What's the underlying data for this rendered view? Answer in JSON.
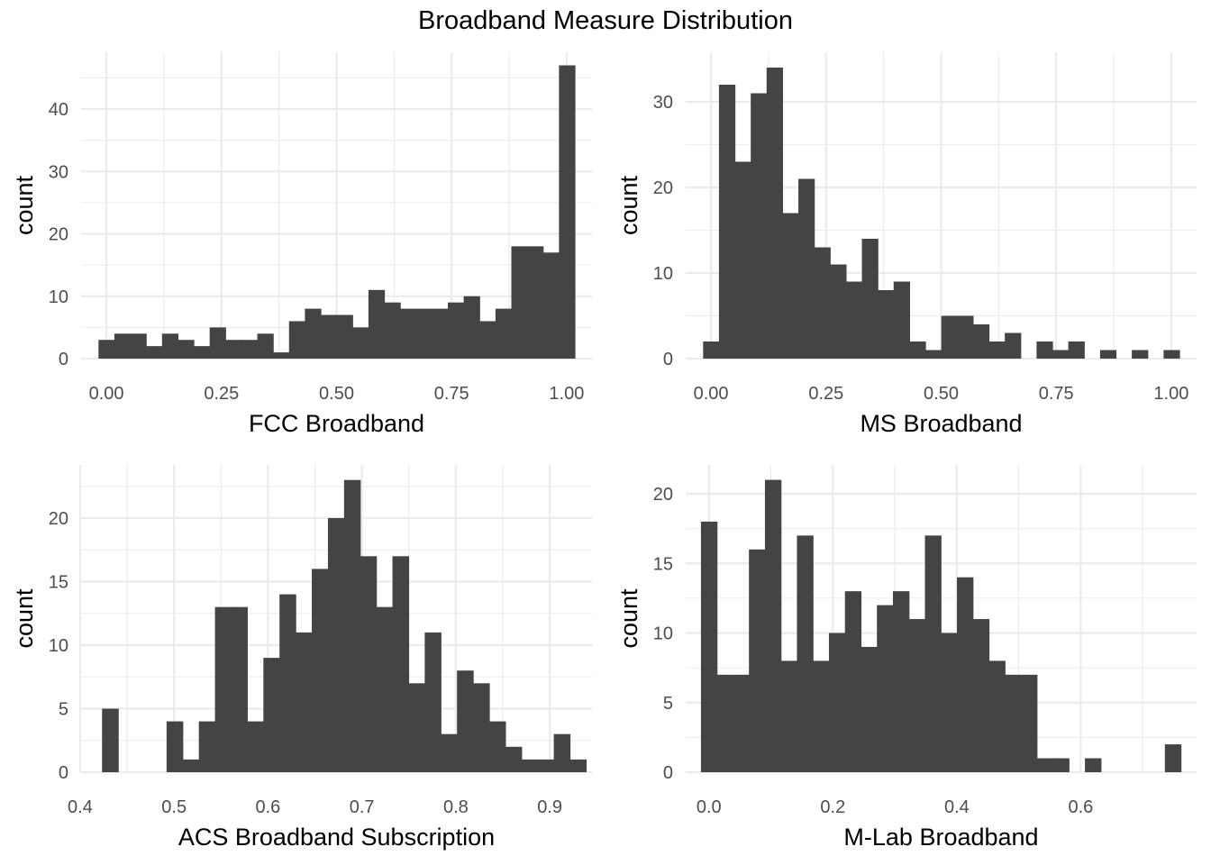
{
  "figure": {
    "title": "Broadband Measure Distribution"
  },
  "chart_data": [
    {
      "type": "bar",
      "xlabel": "FCC Broadband",
      "ylabel": "count",
      "xlim": [
        -0.055,
        1.055
      ],
      "ylim": [
        0,
        47
      ],
      "grid": true,
      "x_major_ticks": [
        0.0,
        0.25,
        0.5,
        0.75,
        1.0
      ],
      "x_tick_labels": [
        "0.00",
        "0.25",
        "0.50",
        "0.75",
        "1.00"
      ],
      "x_minor_ticks": [
        0.125,
        0.375,
        0.625,
        0.875
      ],
      "y_major_ticks": [
        0,
        10,
        20,
        30,
        40
      ],
      "y_tick_labels": [
        "0",
        "10",
        "20",
        "30",
        "40"
      ],
      "y_minor_ticks": [
        5,
        15,
        25,
        35,
        45
      ],
      "bin_start": -0.0172,
      "bin_width": 0.0345,
      "values": [
        3,
        4,
        4,
        2,
        4,
        3,
        2,
        5,
        3,
        3,
        4,
        1,
        6,
        8,
        7,
        7,
        5,
        11,
        9,
        8,
        8,
        8,
        9,
        10,
        6,
        8,
        18,
        18,
        17,
        47
      ]
    },
    {
      "type": "bar",
      "xlabel": "MS Broadband",
      "ylabel": "count",
      "xlim": [
        -0.055,
        1.055
      ],
      "ylim": [
        0,
        34
      ],
      "grid": true,
      "x_major_ticks": [
        0.0,
        0.25,
        0.5,
        0.75,
        1.0
      ],
      "x_tick_labels": [
        "0.00",
        "0.25",
        "0.50",
        "0.75",
        "1.00"
      ],
      "x_minor_ticks": [
        0.125,
        0.375,
        0.625,
        0.875
      ],
      "y_major_ticks": [
        0,
        10,
        20,
        30
      ],
      "y_tick_labels": [
        "0",
        "10",
        "20",
        "30"
      ],
      "y_minor_ticks": [
        5,
        15,
        25
      ],
      "bin_start": -0.0172,
      "bin_width": 0.0345,
      "values": [
        2,
        32,
        23,
        31,
        34,
        17,
        21,
        13,
        11,
        9,
        14,
        8,
        9,
        2,
        1,
        5,
        5,
        4,
        2,
        3,
        0,
        2,
        1,
        2,
        0,
        1,
        0,
        1,
        0,
        1
      ]
    },
    {
      "type": "bar",
      "xlabel": "ACS Broadband Subscription",
      "ylabel": "count",
      "xlim": [
        0.401,
        0.945
      ],
      "ylim": [
        0,
        23
      ],
      "grid": true,
      "x_major_ticks": [
        0.4,
        0.5,
        0.6,
        0.7,
        0.8,
        0.9
      ],
      "x_tick_labels": [
        "0.4",
        "0.5",
        "0.6",
        "0.7",
        "0.8",
        "0.9"
      ],
      "x_minor_ticks": [
        0.45,
        0.55,
        0.65,
        0.75,
        0.85
      ],
      "y_major_ticks": [
        0,
        5,
        10,
        15,
        20
      ],
      "y_tick_labels": [
        "0",
        "5",
        "10",
        "15",
        "20"
      ],
      "y_minor_ticks": [
        2.5,
        7.5,
        12.5,
        17.5,
        22.5
      ],
      "bin_start": 0.4233,
      "bin_width": 0.01718,
      "values": [
        5,
        0,
        0,
        0,
        4,
        1,
        4,
        13,
        13,
        4,
        9,
        14,
        11,
        16,
        20,
        23,
        17,
        13,
        17,
        7,
        11,
        3,
        8,
        7,
        4,
        2,
        1,
        1,
        3,
        1
      ]
    },
    {
      "type": "bar",
      "xlabel": "M-Lab Broadband",
      "ylabel": "count",
      "xlim": [
        -0.0375,
        0.787
      ],
      "ylim": [
        0,
        21
      ],
      "grid": true,
      "x_major_ticks": [
        0.0,
        0.2,
        0.4,
        0.6
      ],
      "x_tick_labels": [
        "0.0",
        "0.2",
        "0.4",
        "0.6"
      ],
      "x_minor_ticks": [
        0.1,
        0.3,
        0.5,
        0.7
      ],
      "y_major_ticks": [
        0,
        5,
        10,
        15,
        20
      ],
      "y_tick_labels": [
        "0",
        "5",
        "10",
        "15",
        "20"
      ],
      "y_minor_ticks": [
        2.5,
        7.5,
        12.5,
        17.5
      ],
      "bin_start": -0.0129,
      "bin_width": 0.02582,
      "values": [
        18,
        7,
        7,
        16,
        21,
        8,
        17,
        8,
        10,
        13,
        9,
        12,
        13,
        11,
        17,
        10,
        14,
        11,
        8,
        7,
        7,
        1,
        1,
        0,
        1,
        0,
        0,
        0,
        0,
        2
      ]
    }
  ]
}
